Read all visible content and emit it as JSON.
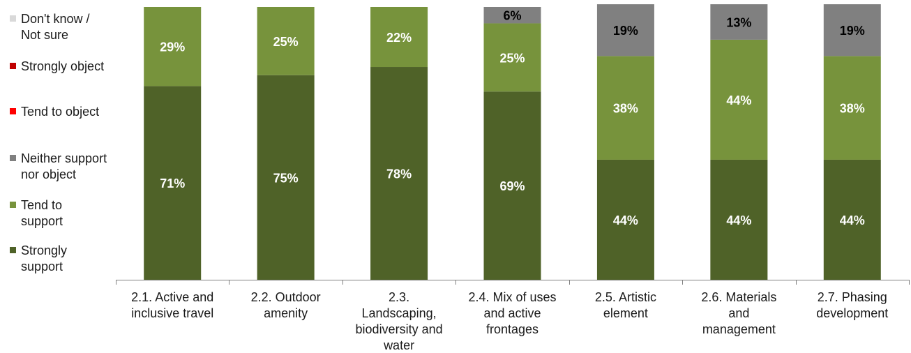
{
  "chart_data": {
    "type": "bar",
    "stacked": true,
    "orientation": "vertical",
    "categories": [
      "2.1. Active and inclusive travel",
      "2.2. Outdoor amenity",
      "2.3. Landscaping, biodiversity and water",
      "2.4. Mix of uses and active frontages",
      "2.5. Artistic element",
      "2.6. Materials and management",
      "2.7.  Phasing development"
    ],
    "category_lines": [
      [
        "2.1. Active and",
        "inclusive travel"
      ],
      [
        "2.2. Outdoor",
        "amenity"
      ],
      [
        "2.3.",
        "Landscaping,",
        "biodiversity and",
        "water"
      ],
      [
        "2.4. Mix of uses",
        "and active",
        "frontages"
      ],
      [
        "2.5. Artistic",
        "element"
      ],
      [
        "2.6. Materials",
        "and",
        "management"
      ],
      [
        "2.7.  Phasing",
        "development"
      ]
    ],
    "series": [
      {
        "name": "Strongly support",
        "color": "#4f6228",
        "values": [
          71,
          75,
          78,
          69,
          44,
          44,
          44
        ]
      },
      {
        "name": "Tend to support",
        "color": "#77933c",
        "values": [
          29,
          25,
          22,
          25,
          38,
          44,
          38
        ]
      },
      {
        "name": "Neither support nor object",
        "color": "#808080",
        "values": [
          0,
          0,
          0,
          6,
          19,
          13,
          19
        ]
      },
      {
        "name": "Tend to object",
        "color": "#ff0000",
        "values": [
          0,
          0,
          0,
          0,
          0,
          0,
          0
        ]
      },
      {
        "name": "Strongly object",
        "color": "#c00000",
        "values": [
          0,
          0,
          0,
          0,
          0,
          0,
          0
        ]
      },
      {
        "name": "Don't know / Not sure",
        "color": "#d9d9d9",
        "values": [
          0,
          0,
          0,
          0,
          0,
          0,
          0
        ]
      }
    ],
    "data_labels": [
      [
        "71%",
        "75%",
        "78%",
        "69%",
        "44%",
        "44%",
        "44%"
      ],
      [
        "29%",
        "25%",
        "22%",
        "25%",
        "38%",
        "44%",
        "38%"
      ],
      [
        "",
        "",
        "",
        "6%",
        "19%",
        "13%",
        "19%"
      ]
    ],
    "ylim": [
      0,
      100
    ],
    "grid": false,
    "legend_position": "left",
    "title": "",
    "xlabel": "",
    "ylabel": ""
  },
  "legend": [
    {
      "label": "Don't know /\nNot sure",
      "color": "#d9d9d9"
    },
    {
      "label": "Strongly object",
      "color": "#c00000"
    },
    {
      "label": "Tend to object",
      "color": "#ff0000"
    },
    {
      "label": "Neither support\nnor object",
      "color": "#808080"
    },
    {
      "label": "Tend to\nsupport",
      "color": "#77933c"
    },
    {
      "label": "Strongly\nsupport",
      "color": "#4f6228"
    }
  ]
}
